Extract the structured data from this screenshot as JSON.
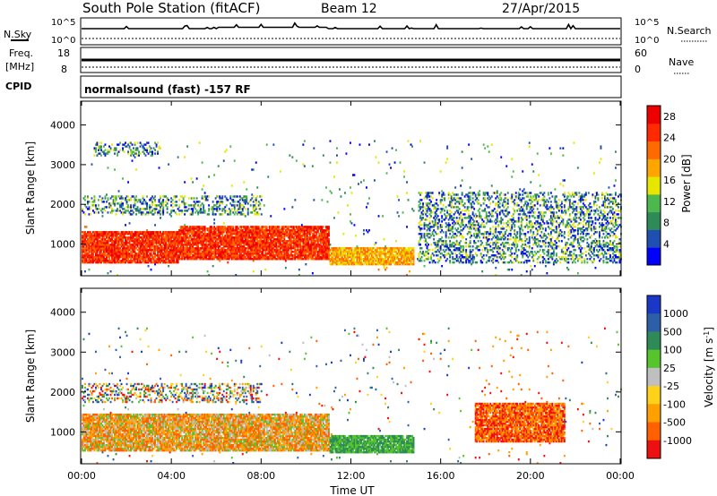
{
  "header": {
    "station": "South Pole Station (fitACF)",
    "beam": "Beam 12",
    "date": "27/Apr/2015"
  },
  "strip_panels": {
    "nsky": {
      "left_label": "N.Sky",
      "right_label": "N.Search",
      "left_ticks": [
        "10^5",
        "10^0"
      ],
      "right_ticks": [
        "10^5",
        "10^0"
      ]
    },
    "freq": {
      "left_label_1": "Freq.",
      "left_label_2": "[MHz]",
      "right_label": "Nave",
      "left_ticks": [
        "18",
        "8"
      ],
      "right_ticks": [
        "60",
        "0"
      ]
    },
    "cpid": {
      "left_label": "CPID",
      "text": "normalsound (fast) -157 RF"
    }
  },
  "colors": {
    "power": [
      "#0000ff",
      "#1f4fb0",
      "#2e8b57",
      "#4db84d",
      "#e6e600",
      "#ffa500",
      "#ff6a00",
      "#ff2a00",
      "#ee0000"
    ],
    "velocity": [
      "#1a37c8",
      "#2d5fa8",
      "#2e8b57",
      "#55c42d",
      "#bfbfbf",
      "#ffd11a",
      "#ffa000",
      "#ff6000",
      "#ee1010"
    ],
    "ground_scatter": "#b4b4b4"
  },
  "chart_data": [
    {
      "type": "heatmap",
      "title": "Power",
      "xlabel": "",
      "ylabel": "Slant Range [km]",
      "xlim": [
        "00:00",
        "24:00"
      ],
      "ylim": [
        200,
        4600
      ],
      "yticks": [
        1000,
        2000,
        3000,
        4000
      ],
      "colorbar": {
        "label": "Power [dB]",
        "ticks": [
          "4",
          "8",
          "12",
          "16",
          "20",
          "24",
          "28"
        ],
        "range": [
          0,
          30
        ]
      },
      "scatter_regions": [
        {
          "t": [
            0,
            4.3
          ],
          "range": [
            500,
            1300
          ],
          "level": "high"
        },
        {
          "t": [
            4.3,
            11.0
          ],
          "range": [
            600,
            1450
          ],
          "level": "high"
        },
        {
          "t": [
            11.0,
            14.8
          ],
          "range": [
            450,
            900
          ],
          "level": "medium-high"
        },
        {
          "t": [
            0,
            8.0
          ],
          "range": [
            1700,
            2200
          ],
          "level": "low"
        },
        {
          "t": [
            0.5,
            3.5
          ],
          "range": [
            3200,
            3550
          ],
          "level": "low"
        },
        {
          "t": [
            15.0,
            24.0
          ],
          "range": [
            500,
            2300
          ],
          "level": "low-medium"
        }
      ]
    },
    {
      "type": "heatmap",
      "title": "Velocity",
      "xlabel": "Time UT",
      "ylabel": "Slant Range [km]",
      "xlim": [
        "00:00",
        "24:00"
      ],
      "xticks": [
        "00:00",
        "04:00",
        "08:00",
        "12:00",
        "16:00",
        "20:00",
        "00:00"
      ],
      "ylim": [
        200,
        4600
      ],
      "yticks": [
        1000,
        2000,
        3000,
        4000
      ],
      "colorbar": {
        "label": "Velocity [m s^-1]",
        "ticks": [
          "1000",
          "500",
          "100",
          "25",
          "-25",
          "-100",
          "-500",
          "-1000"
        ]
      },
      "scatter_regions": [
        {
          "t": [
            0,
            11.0
          ],
          "range": [
            500,
            1450
          ],
          "velocity": "negative"
        },
        {
          "t": [
            11.0,
            14.8
          ],
          "range": [
            450,
            900
          ],
          "velocity": "positive"
        },
        {
          "t": [
            17.5,
            21.5
          ],
          "range": [
            700,
            1700
          ],
          "velocity": "negative"
        },
        {
          "t": [
            0,
            8.0
          ],
          "range": [
            1700,
            2200
          ],
          "velocity": "mixed"
        }
      ]
    }
  ],
  "x_axis": {
    "label": "Time UT",
    "ticks": [
      "00:00",
      "04:00",
      "08:00",
      "12:00",
      "16:00",
      "20:00",
      "00:00"
    ]
  }
}
